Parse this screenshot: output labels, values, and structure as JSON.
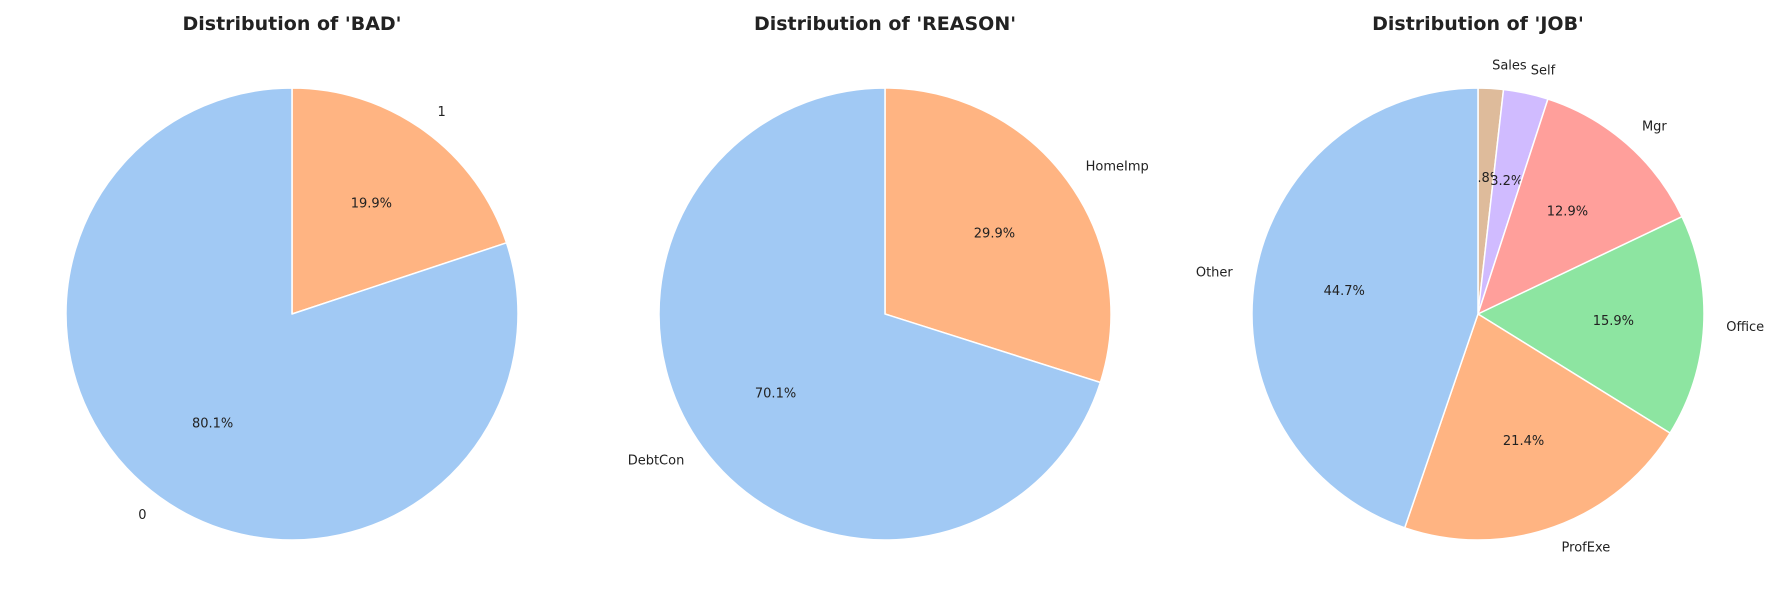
{
  "chart_data": [
    {
      "type": "pie",
      "title": "Distribution of 'BAD'",
      "start_angle_deg": 90,
      "direction": "clockwise",
      "slices": [
        {
          "label": "1",
          "percent": 19.9,
          "pct_label": "19.9%",
          "color": "#ffb482"
        },
        {
          "label": "0",
          "percent": 80.1,
          "pct_label": "80.1%",
          "color": "#a1c9f4"
        }
      ]
    },
    {
      "type": "pie",
      "title": "Distribution of 'REASON'",
      "start_angle_deg": 90,
      "direction": "clockwise",
      "slices": [
        {
          "label": "HomeImp",
          "percent": 29.9,
          "pct_label": "29.9%",
          "color": "#ffb482"
        },
        {
          "label": "DebtCon",
          "percent": 70.1,
          "pct_label": "70.1%",
          "color": "#a1c9f4"
        }
      ]
    },
    {
      "type": "pie",
      "title": "Distribution of 'JOB'",
      "start_angle_deg": 90,
      "direction": "clockwise",
      "slices": [
        {
          "label": "Sales",
          "percent": 1.8,
          "pct_label": "1.8%",
          "color": "#debb9b"
        },
        {
          "label": "Self",
          "percent": 3.2,
          "pct_label": "3.2%",
          "color": "#d0bbff"
        },
        {
          "label": "Mgr",
          "percent": 12.9,
          "pct_label": "12.9%",
          "color": "#ff9f9b"
        },
        {
          "label": "Office",
          "percent": 15.9,
          "pct_label": "15.9%",
          "color": "#8de5a1"
        },
        {
          "label": "ProfExe",
          "percent": 21.4,
          "pct_label": "21.4%",
          "color": "#ffb482"
        },
        {
          "label": "Other",
          "percent": 44.7,
          "pct_label": "44.7%",
          "color": "#a1c9f4"
        }
      ]
    }
  ]
}
